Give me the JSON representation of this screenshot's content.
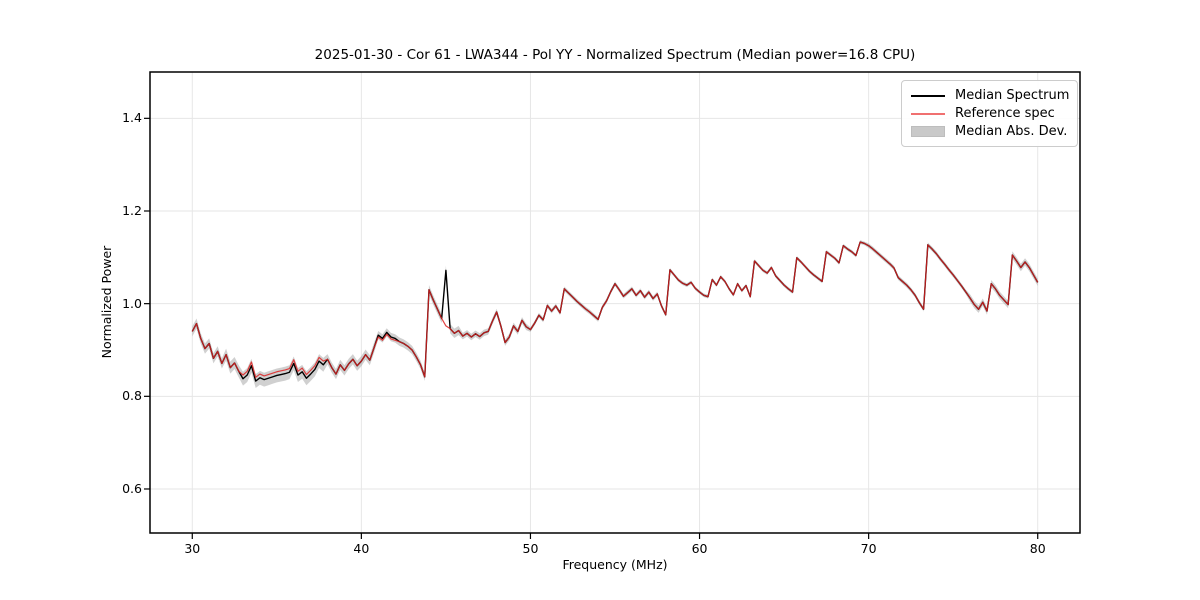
{
  "figure": {
    "kind": "matplotlib-style spectrum plot",
    "background": "#ffffff"
  },
  "chart_data": {
    "type": "line",
    "title": "2025-01-30 - Cor 61 - LWA344 - Pol YY - Normalized Spectrum (Median power=16.8 CPU)",
    "date": "2025-01-30",
    "correlator": "Cor 61",
    "antenna": "LWA344",
    "polarization": "YY",
    "median_power_cpu": 16.8,
    "xlabel": "Frequency (MHz)",
    "ylabel": "Normalized Power",
    "xlim": [
      27.5,
      82.5
    ],
    "ylim": [
      0.505,
      1.5
    ],
    "grid": true,
    "legend_position": "upper right",
    "xticks": {
      "values": [
        30,
        40,
        50,
        60,
        70,
        80
      ],
      "labels": [
        "30",
        "40",
        "50",
        "60",
        "70",
        "80"
      ]
    },
    "yticks": {
      "values": [
        0.6,
        0.8,
        1.0,
        1.2,
        1.4
      ],
      "labels": [
        "0.6",
        "0.8",
        "1.0",
        "1.2",
        "1.4"
      ]
    },
    "style": {
      "grid_color": "#e6e6e6",
      "spine_color": "#000000",
      "tick_color": "#000000"
    },
    "freq_mhz": [
      30.0,
      30.25,
      30.5,
      30.75,
      31.0,
      31.25,
      31.5,
      31.75,
      32.0,
      32.25,
      32.5,
      32.75,
      33.0,
      33.25,
      33.5,
      33.75,
      34.0,
      34.25,
      34.5,
      34.75,
      35.0,
      35.25,
      35.5,
      35.75,
      36.0,
      36.25,
      36.5,
      36.75,
      37.0,
      37.25,
      37.5,
      37.75,
      38.0,
      38.25,
      38.5,
      38.75,
      39.0,
      39.25,
      39.5,
      39.75,
      40.0,
      40.25,
      40.5,
      40.75,
      41.0,
      41.25,
      41.5,
      41.75,
      42.0,
      42.25,
      42.5,
      42.75,
      43.0,
      43.25,
      43.5,
      43.75,
      44.0,
      44.25,
      44.5,
      44.75,
      45.0,
      45.25,
      45.5,
      45.75,
      46.0,
      46.25,
      46.5,
      46.75,
      47.0,
      47.25,
      47.5,
      47.75,
      48.0,
      48.25,
      48.5,
      48.75,
      49.0,
      49.25,
      49.5,
      49.75,
      50.0,
      50.25,
      50.5,
      50.75,
      51.0,
      51.25,
      51.5,
      51.75,
      52.0,
      52.25,
      52.5,
      52.75,
      53.0,
      53.25,
      53.5,
      53.75,
      54.0,
      54.25,
      54.5,
      54.75,
      55.0,
      55.25,
      55.5,
      55.75,
      56.0,
      56.25,
      56.5,
      56.75,
      57.0,
      57.25,
      57.5,
      57.75,
      58.0,
      58.25,
      58.5,
      58.75,
      59.0,
      59.25,
      59.5,
      59.75,
      60.0,
      60.25,
      60.5,
      60.75,
      61.0,
      61.25,
      61.5,
      61.75,
      62.0,
      62.25,
      62.5,
      62.75,
      63.0,
      63.25,
      63.5,
      63.75,
      64.0,
      64.25,
      64.5,
      64.75,
      65.0,
      65.25,
      65.5,
      65.75,
      66.0,
      66.25,
      66.5,
      66.75,
      67.0,
      67.25,
      67.5,
      67.75,
      68.0,
      68.25,
      68.5,
      68.75,
      69.0,
      69.25,
      69.5,
      69.75,
      70.0,
      70.25,
      70.5,
      70.75,
      71.0,
      71.25,
      71.5,
      71.75,
      72.0,
      72.25,
      72.5,
      72.75,
      73.0,
      73.25,
      73.5,
      73.75,
      74.0,
      74.25,
      74.5,
      74.75,
      75.0,
      75.25,
      75.5,
      75.75,
      76.0,
      76.25,
      76.5,
      76.75,
      77.0,
      77.25,
      77.5,
      77.75,
      78.0,
      78.25,
      78.5,
      78.75,
      79.0,
      79.25,
      79.5,
      79.75,
      80.0
    ],
    "series": [
      {
        "name": "Median Spectrum",
        "color": "#000000",
        "opacity": 1.0,
        "line_width": 1.4,
        "values": [
          0.94,
          0.957,
          0.925,
          0.903,
          0.914,
          0.882,
          0.897,
          0.871,
          0.89,
          0.862,
          0.872,
          0.854,
          0.838,
          0.846,
          0.866,
          0.833,
          0.84,
          0.836,
          0.839,
          0.842,
          0.845,
          0.847,
          0.849,
          0.852,
          0.871,
          0.846,
          0.853,
          0.839,
          0.848,
          0.858,
          0.876,
          0.868,
          0.88,
          0.862,
          0.848,
          0.868,
          0.856,
          0.87,
          0.88,
          0.866,
          0.876,
          0.89,
          0.878,
          0.905,
          0.932,
          0.925,
          0.938,
          0.928,
          0.925,
          0.918,
          0.914,
          0.908,
          0.9,
          0.885,
          0.868,
          0.842,
          1.03,
          1.008,
          0.988,
          0.968,
          1.072,
          0.946,
          0.936,
          0.942,
          0.93,
          0.936,
          0.928,
          0.935,
          0.929,
          0.937,
          0.94,
          0.962,
          0.982,
          0.952,
          0.916,
          0.928,
          0.952,
          0.94,
          0.964,
          0.95,
          0.944,
          0.958,
          0.975,
          0.965,
          0.996,
          0.984,
          0.995,
          0.98,
          1.032,
          1.023,
          1.014,
          1.005,
          0.997,
          0.989,
          0.982,
          0.974,
          0.966,
          0.992,
          1.006,
          1.026,
          1.043,
          1.03,
          1.016,
          1.024,
          1.032,
          1.018,
          1.028,
          1.014,
          1.025,
          1.011,
          1.021,
          0.995,
          0.976,
          1.073,
          1.062,
          1.051,
          1.044,
          1.04,
          1.046,
          1.033,
          1.025,
          1.018,
          1.015,
          1.052,
          1.04,
          1.058,
          1.048,
          1.032,
          1.019,
          1.043,
          1.028,
          1.039,
          1.015,
          1.092,
          1.082,
          1.072,
          1.066,
          1.078,
          1.06,
          1.05,
          1.04,
          1.032,
          1.025,
          1.099,
          1.09,
          1.08,
          1.07,
          1.062,
          1.055,
          1.048,
          1.112,
          1.105,
          1.098,
          1.088,
          1.125,
          1.118,
          1.112,
          1.104,
          1.133,
          1.13,
          1.125,
          1.118,
          1.11,
          1.102,
          1.094,
          1.086,
          1.077,
          1.056,
          1.048,
          1.04,
          1.03,
          1.018,
          1.002,
          0.988,
          1.127,
          1.118,
          1.108,
          1.096,
          1.085,
          1.073,
          1.062,
          1.05,
          1.038,
          1.025,
          1.012,
          0.998,
          0.988,
          1.003,
          0.984,
          1.043,
          1.032,
          1.018,
          1.008,
          0.998,
          1.105,
          1.092,
          1.078,
          1.09,
          1.078,
          1.062,
          1.046
        ]
      },
      {
        "name": "Reference spec",
        "color": "#dd2222",
        "opacity": 0.85,
        "line_width": 1.2,
        "values": [
          0.94,
          0.957,
          0.925,
          0.903,
          0.914,
          0.882,
          0.897,
          0.871,
          0.89,
          0.862,
          0.872,
          0.854,
          0.846,
          0.854,
          0.874,
          0.841,
          0.848,
          0.844,
          0.847,
          0.85,
          0.853,
          0.855,
          0.857,
          0.86,
          0.879,
          0.854,
          0.861,
          0.847,
          0.856,
          0.866,
          0.884,
          0.876,
          0.88,
          0.862,
          0.848,
          0.868,
          0.856,
          0.87,
          0.88,
          0.866,
          0.876,
          0.89,
          0.878,
          0.905,
          0.928,
          0.921,
          0.934,
          0.924,
          0.921,
          0.918,
          0.914,
          0.908,
          0.9,
          0.885,
          0.868,
          0.842,
          1.03,
          1.008,
          0.988,
          0.968,
          0.952,
          0.946,
          0.936,
          0.942,
          0.93,
          0.936,
          0.928,
          0.935,
          0.929,
          0.937,
          0.94,
          0.962,
          0.982,
          0.952,
          0.916,
          0.928,
          0.952,
          0.94,
          0.964,
          0.95,
          0.944,
          0.958,
          0.975,
          0.965,
          0.996,
          0.984,
          0.995,
          0.98,
          1.032,
          1.023,
          1.014,
          1.005,
          0.997,
          0.989,
          0.982,
          0.974,
          0.966,
          0.992,
          1.006,
          1.026,
          1.043,
          1.03,
          1.016,
          1.024,
          1.032,
          1.018,
          1.028,
          1.014,
          1.025,
          1.011,
          1.021,
          0.995,
          0.976,
          1.073,
          1.062,
          1.051,
          1.044,
          1.04,
          1.046,
          1.033,
          1.025,
          1.018,
          1.015,
          1.052,
          1.04,
          1.058,
          1.048,
          1.032,
          1.019,
          1.043,
          1.028,
          1.039,
          1.015,
          1.092,
          1.082,
          1.072,
          1.066,
          1.078,
          1.06,
          1.05,
          1.04,
          1.032,
          1.025,
          1.099,
          1.09,
          1.08,
          1.07,
          1.062,
          1.055,
          1.048,
          1.112,
          1.105,
          1.098,
          1.088,
          1.125,
          1.118,
          1.112,
          1.104,
          1.133,
          1.13,
          1.125,
          1.118,
          1.11,
          1.102,
          1.094,
          1.086,
          1.077,
          1.056,
          1.048,
          1.04,
          1.03,
          1.018,
          1.002,
          0.988,
          1.127,
          1.118,
          1.108,
          1.096,
          1.085,
          1.073,
          1.062,
          1.05,
          1.038,
          1.025,
          1.012,
          0.998,
          0.988,
          1.003,
          0.984,
          1.043,
          1.032,
          1.018,
          1.008,
          0.998,
          1.105,
          1.092,
          1.078,
          1.09,
          1.078,
          1.062,
          1.046
        ]
      },
      {
        "name": "Median Abs. Dev.",
        "type": "band",
        "color": "#aaaaaa",
        "opacity": 0.55,
        "half_width": [
          0.011,
          0.011,
          0.011,
          0.011,
          0.011,
          0.011,
          0.011,
          0.011,
          0.013,
          0.013,
          0.013,
          0.013,
          0.015,
          0.015,
          0.015,
          0.015,
          0.015,
          0.015,
          0.015,
          0.015,
          0.015,
          0.015,
          0.015,
          0.015,
          0.015,
          0.015,
          0.015,
          0.015,
          0.015,
          0.015,
          0.015,
          0.015,
          0.011,
          0.011,
          0.011,
          0.011,
          0.011,
          0.011,
          0.011,
          0.011,
          0.011,
          0.011,
          0.011,
          0.011,
          0.009,
          0.009,
          0.009,
          0.009,
          0.009,
          0.009,
          0.009,
          0.009,
          0.009,
          0.009,
          0.009,
          0.009,
          0.01,
          0.01,
          0.01,
          0.01,
          0.01,
          0.01,
          0.01,
          0.01,
          0.007,
          0.007,
          0.007,
          0.007,
          0.007,
          0.007,
          0.007,
          0.007,
          0.007,
          0.007,
          0.007,
          0.007,
          0.007,
          0.007,
          0.007,
          0.007,
          0.005,
          0.005,
          0.005,
          0.005,
          0.005,
          0.005,
          0.005,
          0.005,
          0.005,
          0.005,
          0.005,
          0.005,
          0.005,
          0.005,
          0.005,
          0.005,
          0.005,
          0.005,
          0.005,
          0.005,
          0.005,
          0.005,
          0.005,
          0.005,
          0.005,
          0.005,
          0.005,
          0.005,
          0.005,
          0.005,
          0.005,
          0.005,
          0.004,
          0.004,
          0.004,
          0.004,
          0.004,
          0.004,
          0.004,
          0.004,
          0.004,
          0.004,
          0.004,
          0.004,
          0.004,
          0.004,
          0.004,
          0.004,
          0.004,
          0.004,
          0.004,
          0.004,
          0.004,
          0.004,
          0.004,
          0.004,
          0.004,
          0.004,
          0.004,
          0.004,
          0.004,
          0.004,
          0.004,
          0.004,
          0.004,
          0.004,
          0.004,
          0.004,
          0.004,
          0.004,
          0.004,
          0.004,
          0.004,
          0.004,
          0.004,
          0.004,
          0.004,
          0.004,
          0.004,
          0.004,
          0.005,
          0.005,
          0.005,
          0.005,
          0.005,
          0.005,
          0.005,
          0.005,
          0.005,
          0.005,
          0.005,
          0.005,
          0.005,
          0.005,
          0.005,
          0.005,
          0.005,
          0.005,
          0.005,
          0.005,
          0.005,
          0.005,
          0.005,
          0.005,
          0.008,
          0.008,
          0.008,
          0.008,
          0.008,
          0.008,
          0.008,
          0.008,
          0.008,
          0.008,
          0.008,
          0.008,
          0.008,
          0.008,
          0.008,
          0.008,
          0.008
        ]
      }
    ],
    "legend": [
      {
        "label": "Median Spectrum",
        "swatch": "line",
        "color": "#000000"
      },
      {
        "label": "Reference spec",
        "swatch": "line",
        "color": "#f07070"
      },
      {
        "label": "Median Abs. Dev.",
        "swatch": "patch",
        "color": "#c9c9c9"
      }
    ]
  }
}
